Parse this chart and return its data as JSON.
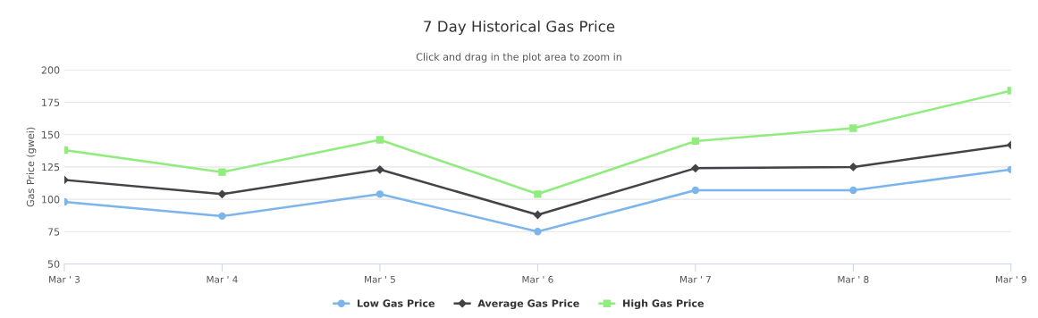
{
  "chart_data": {
    "type": "line",
    "title": "7 Day Historical Gas Price",
    "subtitle": "Click and drag in the plot area to zoom in",
    "ylabel": "Gas Price (gwei)",
    "categories": [
      "Mar ' 3",
      "Mar ' 4",
      "Mar ' 5",
      "Mar ' 6",
      "Mar ' 7",
      "Mar ' 8",
      "Mar ' 9"
    ],
    "series": [
      {
        "name": "Low Gas Price",
        "color": "#7cb5ec",
        "marker": "circle",
        "values": [
          98,
          87,
          104,
          75,
          107,
          107,
          123
        ]
      },
      {
        "name": "Average Gas Price",
        "color": "#434348",
        "marker": "diamond",
        "values": [
          115,
          104,
          123,
          88,
          124,
          125,
          142
        ]
      },
      {
        "name": "High Gas Price",
        "color": "#90ed7d",
        "marker": "square",
        "values": [
          138,
          121,
          146,
          104,
          145,
          155,
          184
        ]
      }
    ],
    "ylim": [
      50,
      200
    ],
    "yticks": [
      50,
      75,
      100,
      125,
      150,
      175,
      200
    ],
    "grid": "y",
    "legend": "bottom",
    "line_style": "solid"
  }
}
